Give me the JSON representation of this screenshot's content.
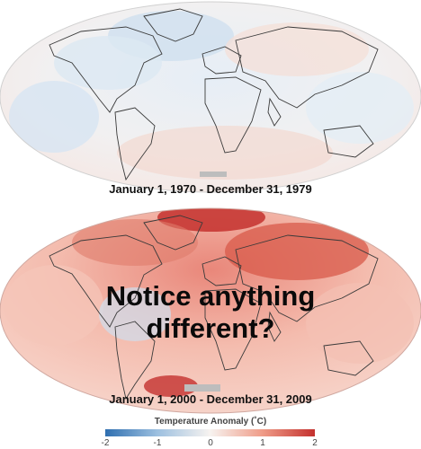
{
  "colors": {
    "cold": "#2f6fb0",
    "cool": "#c9dcee",
    "neutral": "#f7f3f0",
    "warm": "#f2b3a3",
    "hot": "#c4312e",
    "land_outline": "#3a3a3a",
    "ice_gray": "#bdbdbd"
  },
  "maps": [
    {
      "caption": "January 1, 1970 - December 31, 1979",
      "anomaly_level": "near-zero"
    },
    {
      "caption": "January 1, 2000 - December 31, 2009",
      "anomaly_level": "warm"
    }
  ],
  "overlay": {
    "line1": "Notice anything",
    "line2": "different?"
  },
  "legend": {
    "title": "Temperature Anomaly (˚C)",
    "ticks": [
      "-2",
      "-1",
      "0",
      "1",
      "2"
    ],
    "range": [
      -2,
      2
    ]
  }
}
